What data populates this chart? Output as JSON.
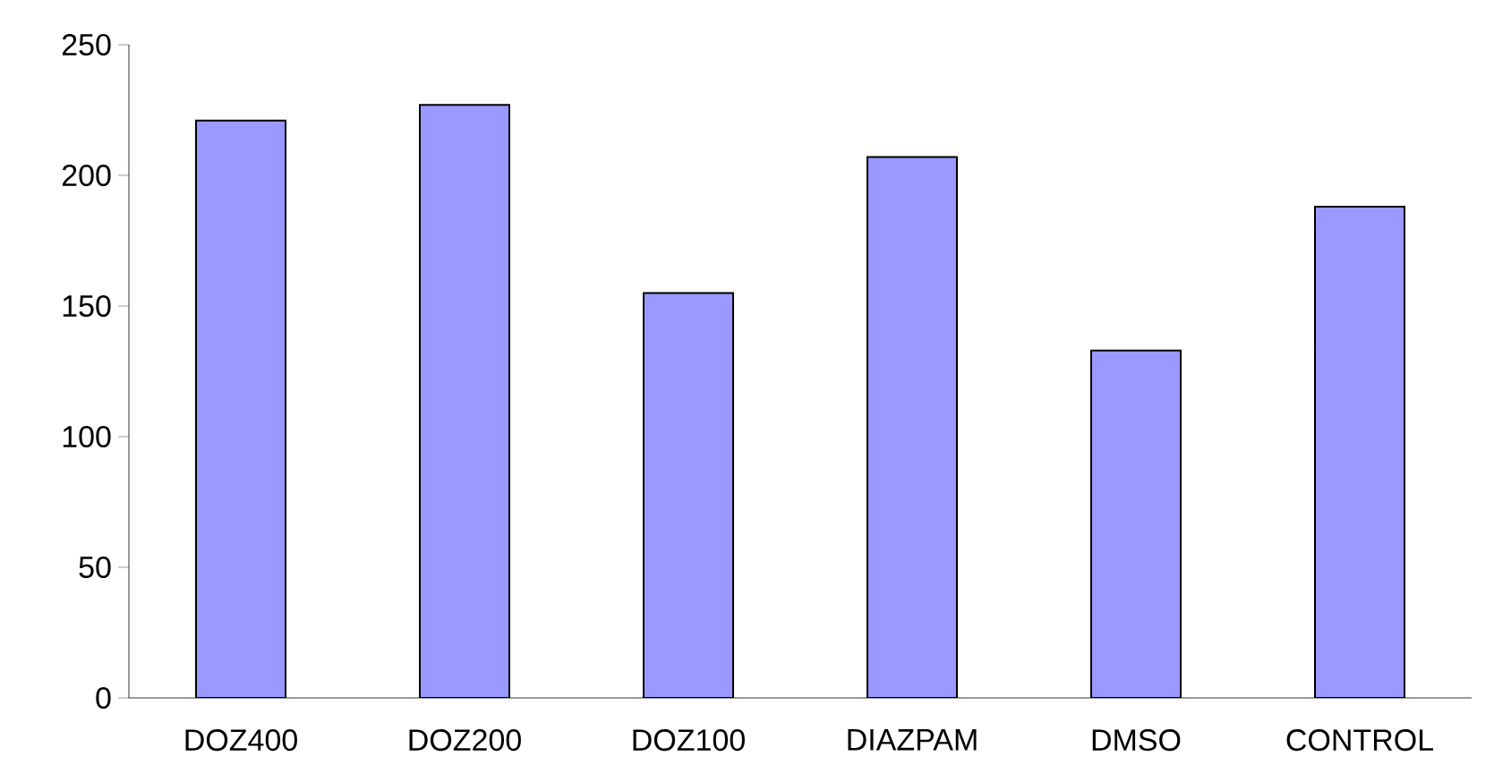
{
  "chart_data": {
    "type": "bar",
    "categories": [
      "DOZ400",
      "DOZ200",
      "DOZ100",
      "DIAZPAM",
      "DMSO",
      "CONTROL"
    ],
    "values": [
      221,
      227,
      155,
      207,
      133,
      188
    ],
    "color": "#9999ff",
    "ylim": [
      0,
      250
    ],
    "yticks": [
      0,
      50,
      100,
      150,
      200,
      250
    ],
    "grid": false
  }
}
